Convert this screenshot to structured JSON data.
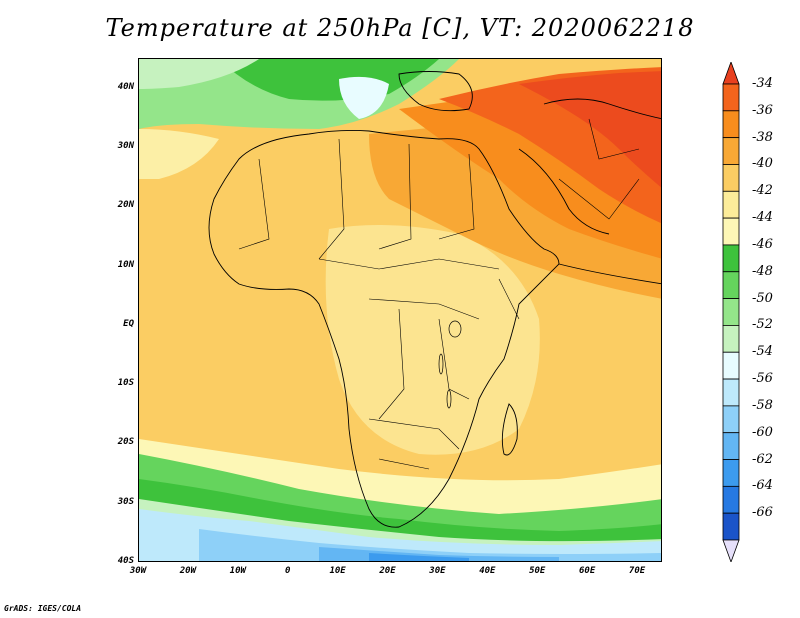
{
  "title": "Temperature at 250hPa [C], VT: 2020062218",
  "footer": "GrADS: IGES/COLA",
  "map": {
    "lon_range": [
      -30,
      75
    ],
    "lat_range": [
      -40,
      45
    ],
    "lat_ticks": [
      {
        "value": 40,
        "label": "40N"
      },
      {
        "value": 30,
        "label": "30N"
      },
      {
        "value": 20,
        "label": "20N"
      },
      {
        "value": 10,
        "label": "10N"
      },
      {
        "value": 0,
        "label": "EQ"
      },
      {
        "value": -10,
        "label": "10S"
      },
      {
        "value": -20,
        "label": "20S"
      },
      {
        "value": -30,
        "label": "30S"
      },
      {
        "value": -40,
        "label": "40S"
      }
    ],
    "lon_ticks": [
      {
        "value": -30,
        "label": "30W"
      },
      {
        "value": -20,
        "label": "20W"
      },
      {
        "value": -10,
        "label": "10W"
      },
      {
        "value": 0,
        "label": "0"
      },
      {
        "value": 10,
        "label": "10E"
      },
      {
        "value": 20,
        "label": "20E"
      },
      {
        "value": 30,
        "label": "30E"
      },
      {
        "value": 40,
        "label": "40E"
      },
      {
        "value": 50,
        "label": "50E"
      },
      {
        "value": 60,
        "label": "60E"
      },
      {
        "value": 70,
        "label": "70E"
      }
    ]
  },
  "colorbar": {
    "labels": [
      "-34",
      "-36",
      "-38",
      "-40",
      "-42",
      "-44",
      "-46",
      "-48",
      "-50",
      "-52",
      "-54",
      "-56",
      "-58",
      "-60",
      "-62",
      "-64",
      "-66"
    ],
    "colors": [
      "#e8401f",
      "#f3641c",
      "#f88d1d",
      "#f8a835",
      "#fbcd63",
      "#fcec9a",
      "#fdf7b6",
      "#3ec23c",
      "#65d45d",
      "#94e58a",
      "#c6f2bf",
      "#e8fcff",
      "#bee9fb",
      "#8ed0f8",
      "#63b6f3",
      "#3c9bee",
      "#2679e2",
      "#1a54c9",
      "#11339b"
    ],
    "top_arrow_color": "#e8401f",
    "bottom_arrow_color": "#e6e0fa"
  }
}
